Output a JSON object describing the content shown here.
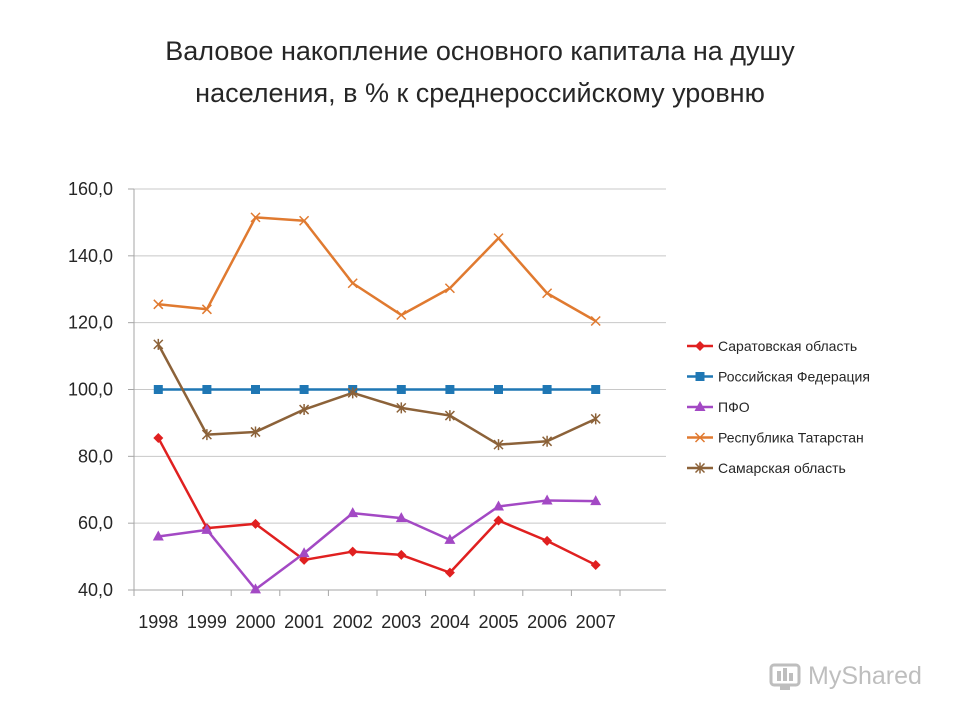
{
  "title": {
    "line1": "Валовое накопление основного капитала на душу",
    "line2": "населения, в % к среднероссийскому уровню"
  },
  "watermark": {
    "text": "MyShared",
    "icon": "myshared-logo-icon"
  },
  "chart_data": {
    "type": "line",
    "categories": [
      "1998",
      "1999",
      "2000",
      "2001",
      "2002",
      "2003",
      "2004",
      "2005",
      "2006",
      "2007"
    ],
    "y_tick_labels": [
      "40,0",
      "60,0",
      "80,0",
      "100,0",
      "120,0",
      "140,0",
      "160,0"
    ],
    "ylim": [
      40,
      160
    ],
    "grid": true,
    "legend_position": "right",
    "xlabel": "",
    "ylabel": "",
    "series": [
      {
        "name": "Саратовская область",
        "color": "#e02020",
        "marker": "diamond",
        "values": [
          85.5,
          58.5,
          59.8,
          49.0,
          51.5,
          50.5,
          45.2,
          60.8,
          54.7,
          47.5
        ]
      },
      {
        "name": "Российская Федерация",
        "color": "#1f77b4",
        "marker": "square",
        "values": [
          100.0,
          100.0,
          100.0,
          100.0,
          100.0,
          100.0,
          100.0,
          100.0,
          100.0,
          100.0
        ]
      },
      {
        "name": "ПФО",
        "color": "#a349c4",
        "marker": "triangle",
        "values": [
          56.0,
          58.0,
          40.2,
          51.0,
          63.0,
          61.5,
          55.0,
          65.0,
          66.8,
          66.6
        ]
      },
      {
        "name": "Республика Татарстан",
        "color": "#e07a30",
        "marker": "x",
        "values": [
          125.5,
          124.0,
          151.5,
          150.5,
          131.8,
          122.3,
          130.3,
          145.3,
          128.8,
          120.5
        ]
      },
      {
        "name": "Самарская область",
        "color": "#8c6239",
        "marker": "star",
        "values": [
          113.5,
          86.5,
          87.3,
          94.0,
          99.0,
          94.5,
          92.2,
          83.5,
          84.5,
          91.2
        ]
      }
    ]
  }
}
